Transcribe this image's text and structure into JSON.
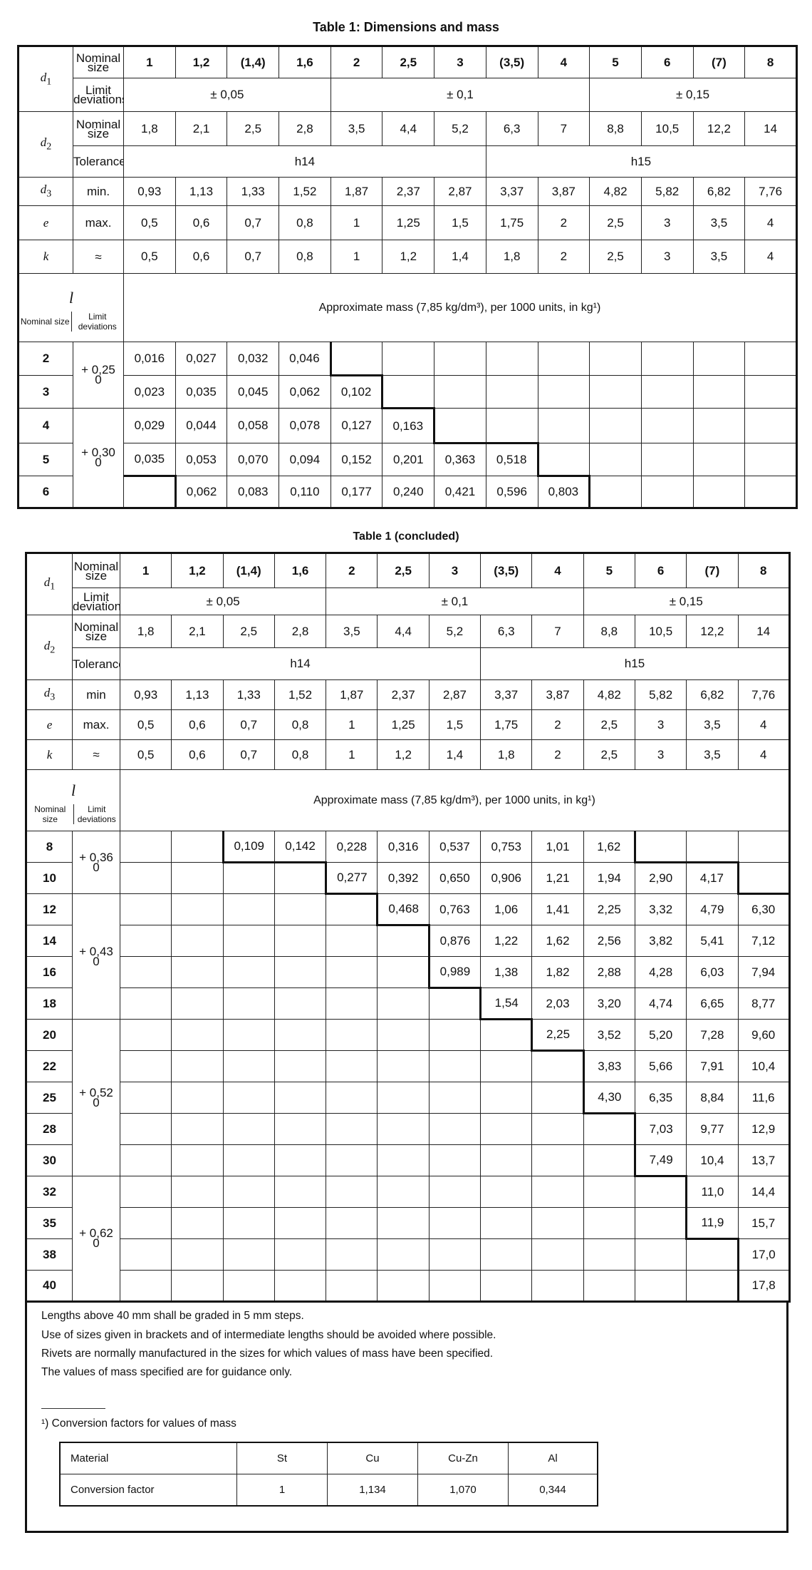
{
  "table1": {
    "title": "Table 1:  Dimensions and mass",
    "d1": {
      "symbol": "d",
      "sub": "1",
      "nominal_label": "Nominal size",
      "values": [
        "1",
        "1,2",
        "(1,4)",
        "1,6",
        "2",
        "2,5",
        "3",
        "(3,5)",
        "4",
        "5",
        "6",
        "(7)",
        "8"
      ],
      "limit_label": "Limit deviations",
      "limits": [
        "± 0,05",
        "± 0,1",
        "± 0,15"
      ]
    },
    "d2": {
      "symbol": "d",
      "sub": "2",
      "nominal_label": "Nominal size",
      "values": [
        "1,8",
        "2,1",
        "2,5",
        "2,8",
        "3,5",
        "4,4",
        "5,2",
        "6,3",
        "7",
        "8,8",
        "10,5",
        "12,2",
        "14"
      ],
      "tolerance_label": "Tolerance",
      "tolerances": [
        "h14",
        "h15"
      ]
    },
    "d3": {
      "symbol": "d",
      "sub": "3",
      "label": "min.",
      "values": [
        "0,93",
        "1,13",
        "1,33",
        "1,52",
        "1,87",
        "2,37",
        "2,87",
        "3,37",
        "3,87",
        "4,82",
        "5,82",
        "6,82",
        "7,76"
      ]
    },
    "e": {
      "symbol": "e",
      "label": "max.",
      "values": [
        "0,5",
        "0,6",
        "0,7",
        "0,8",
        "1",
        "1,25",
        "1,5",
        "1,75",
        "2",
        "2,5",
        "3",
        "3,5",
        "4"
      ]
    },
    "k": {
      "symbol": "k",
      "label": "≈",
      "values": [
        "0,5",
        "0,6",
        "0,7",
        "0,8",
        "1",
        "1,2",
        "1,4",
        "1,8",
        "2",
        "2,5",
        "3",
        "3,5",
        "4"
      ]
    },
    "l_header": {
      "symbol": "l",
      "nominal_label": "Nominal size",
      "limit_label": "Limit deviations"
    },
    "mass_header": "Approximate mass (7,85 kg/dm³), per 1000 units, in kg¹)",
    "limit_groups": [
      {
        "upper": "+ 0,25",
        "lower": "0"
      },
      {
        "upper": "+ 0,30",
        "lower": "0"
      }
    ],
    "rows": [
      {
        "size": "2",
        "values": [
          "0,016",
          "0,027",
          "0,032",
          "0,046",
          "",
          "",
          "",
          "",
          "",
          "",
          "",
          "",
          ""
        ]
      },
      {
        "size": "3",
        "values": [
          "0,023",
          "0,035",
          "0,045",
          "0,062",
          "0,102",
          "",
          "",
          "",
          "",
          "",
          "",
          "",
          ""
        ]
      },
      {
        "size": "4",
        "values": [
          "0,029",
          "0,044",
          "0,058",
          "0,078",
          "0,127",
          "0,163",
          "",
          "",
          "",
          "",
          "",
          "",
          ""
        ]
      },
      {
        "size": "5",
        "values": [
          "0,035",
          "0,053",
          "0,070",
          "0,094",
          "0,152",
          "0,201",
          "0,363",
          "0,518",
          "",
          "",
          "",
          "",
          ""
        ]
      },
      {
        "size": "6",
        "values": [
          "",
          "0,062",
          "0,083",
          "0,110",
          "0,177",
          "0,240",
          "0,421",
          "0,596",
          "0,803",
          "",
          "",
          "",
          ""
        ]
      }
    ]
  },
  "table2": {
    "title": "Table 1  (concluded)",
    "d1": {
      "symbol": "d",
      "sub": "1",
      "nominal_label": "Nominal size",
      "values": [
        "1",
        "1,2",
        "(1,4)",
        "1,6",
        "2",
        "2,5",
        "3",
        "(3,5)",
        "4",
        "5",
        "6",
        "(7)",
        "8"
      ],
      "limit_label": "Limit deviations",
      "limits": [
        "± 0,05",
        "± 0,1",
        "± 0,15"
      ]
    },
    "d2": {
      "symbol": "d",
      "sub": "2",
      "nominal_label": "Nominal size",
      "values": [
        "1,8",
        "2,1",
        "2,5",
        "2,8",
        "3,5",
        "4,4",
        "5,2",
        "6,3",
        "7",
        "8,8",
        "10,5",
        "12,2",
        "14"
      ],
      "tolerance_label": "Tolerance",
      "tolerances": [
        "h14",
        "h15"
      ]
    },
    "d3": {
      "symbol": "d",
      "sub": "3",
      "label": "min",
      "values": [
        "0,93",
        "1,13",
        "1,33",
        "1,52",
        "1,87",
        "2,37",
        "2,87",
        "3,37",
        "3,87",
        "4,82",
        "5,82",
        "6,82",
        "7,76"
      ]
    },
    "e": {
      "symbol": "e",
      "label": "max.",
      "values": [
        "0,5",
        "0,6",
        "0,7",
        "0,8",
        "1",
        "1,25",
        "1,5",
        "1,75",
        "2",
        "2,5",
        "3",
        "3,5",
        "4"
      ]
    },
    "k": {
      "symbol": "k",
      "label": "≈",
      "values": [
        "0,5",
        "0,6",
        "0,7",
        "0,8",
        "1",
        "1,2",
        "1,4",
        "1,8",
        "2",
        "2,5",
        "3",
        "3,5",
        "4"
      ]
    },
    "l_header": {
      "symbol": "l",
      "nominal_label": "Nominal size",
      "limit_label": "Limit deviations"
    },
    "mass_header": "Approximate mass (7,85 kg/dm³), per 1000 units, in kg¹)",
    "limit_groups": [
      {
        "upper": "+ 0,36",
        "lower": "0"
      },
      {
        "upper": "+ 0,43",
        "lower": "0"
      },
      {
        "upper": "+ 0,52",
        "lower": "0"
      },
      {
        "upper": "+ 0,62",
        "lower": "0"
      }
    ],
    "rows": [
      {
        "size": "8",
        "values": [
          "",
          "",
          "0,109",
          "0,142",
          "0,228",
          "0,316",
          "0,537",
          "0,753",
          "1,01",
          "1,62",
          "",
          "",
          ""
        ]
      },
      {
        "size": "10",
        "values": [
          "",
          "",
          "",
          "",
          "0,277",
          "0,392",
          "0,650",
          "0,906",
          "1,21",
          "1,94",
          "2,90",
          "4,17",
          ""
        ]
      },
      {
        "size": "12",
        "values": [
          "",
          "",
          "",
          "",
          "",
          "0,468",
          "0,763",
          "1,06",
          "1,41",
          "2,25",
          "3,32",
          "4,79",
          "6,30"
        ]
      },
      {
        "size": "14",
        "values": [
          "",
          "",
          "",
          "",
          "",
          "",
          "0,876",
          "1,22",
          "1,62",
          "2,56",
          "3,82",
          "5,41",
          "7,12"
        ]
      },
      {
        "size": "16",
        "values": [
          "",
          "",
          "",
          "",
          "",
          "",
          "0,989",
          "1,38",
          "1,82",
          "2,88",
          "4,28",
          "6,03",
          "7,94"
        ]
      },
      {
        "size": "18",
        "values": [
          "",
          "",
          "",
          "",
          "",
          "",
          "",
          "1,54",
          "2,03",
          "3,20",
          "4,74",
          "6,65",
          "8,77"
        ]
      },
      {
        "size": "20",
        "values": [
          "",
          "",
          "",
          "",
          "",
          "",
          "",
          "",
          "2,25",
          "3,52",
          "5,20",
          "7,28",
          "9,60"
        ]
      },
      {
        "size": "22",
        "values": [
          "",
          "",
          "",
          "",
          "",
          "",
          "",
          "",
          "",
          "3,83",
          "5,66",
          "7,91",
          "10,4"
        ]
      },
      {
        "size": "25",
        "values": [
          "",
          "",
          "",
          "",
          "",
          "",
          "",
          "",
          "",
          "4,30",
          "6,35",
          "8,84",
          "11,6"
        ]
      },
      {
        "size": "28",
        "values": [
          "",
          "",
          "",
          "",
          "",
          "",
          "",
          "",
          "",
          "",
          "7,03",
          "9,77",
          "12,9"
        ]
      },
      {
        "size": "30",
        "values": [
          "",
          "",
          "",
          "",
          "",
          "",
          "",
          "",
          "",
          "",
          "7,49",
          "10,4",
          "13,7"
        ]
      },
      {
        "size": "32",
        "values": [
          "",
          "",
          "",
          "",
          "",
          "",
          "",
          "",
          "",
          "",
          "",
          "11,0",
          "14,4"
        ]
      },
      {
        "size": "35",
        "values": [
          "",
          "",
          "",
          "",
          "",
          "",
          "",
          "",
          "",
          "",
          "",
          "11,9",
          "15,7"
        ]
      },
      {
        "size": "38",
        "values": [
          "",
          "",
          "",
          "",
          "",
          "",
          "",
          "",
          "",
          "",
          "",
          "",
          "17,0"
        ]
      },
      {
        "size": "40",
        "values": [
          "",
          "",
          "",
          "",
          "",
          "",
          "",
          "",
          "",
          "",
          "",
          "",
          "17,8"
        ]
      }
    ]
  },
  "notes": [
    "Lengths above 40 mm shall be graded in 5 mm steps.",
    "Use of sizes given in brackets and of intermediate lengths should be avoided where possible.",
    "Rivets are normally manufactured in the sizes for which values of mass have been specified.",
    "The values of mass specified are for guidance only."
  ],
  "footnote": {
    "text": "¹)  Conversion factors for values of mass",
    "table": {
      "headers": [
        "Material",
        "St",
        "Cu",
        "Cu-Zn",
        "Al"
      ],
      "row": [
        "Conversion factor",
        "1",
        "1,134",
        "1,070",
        "0,344"
      ]
    }
  }
}
